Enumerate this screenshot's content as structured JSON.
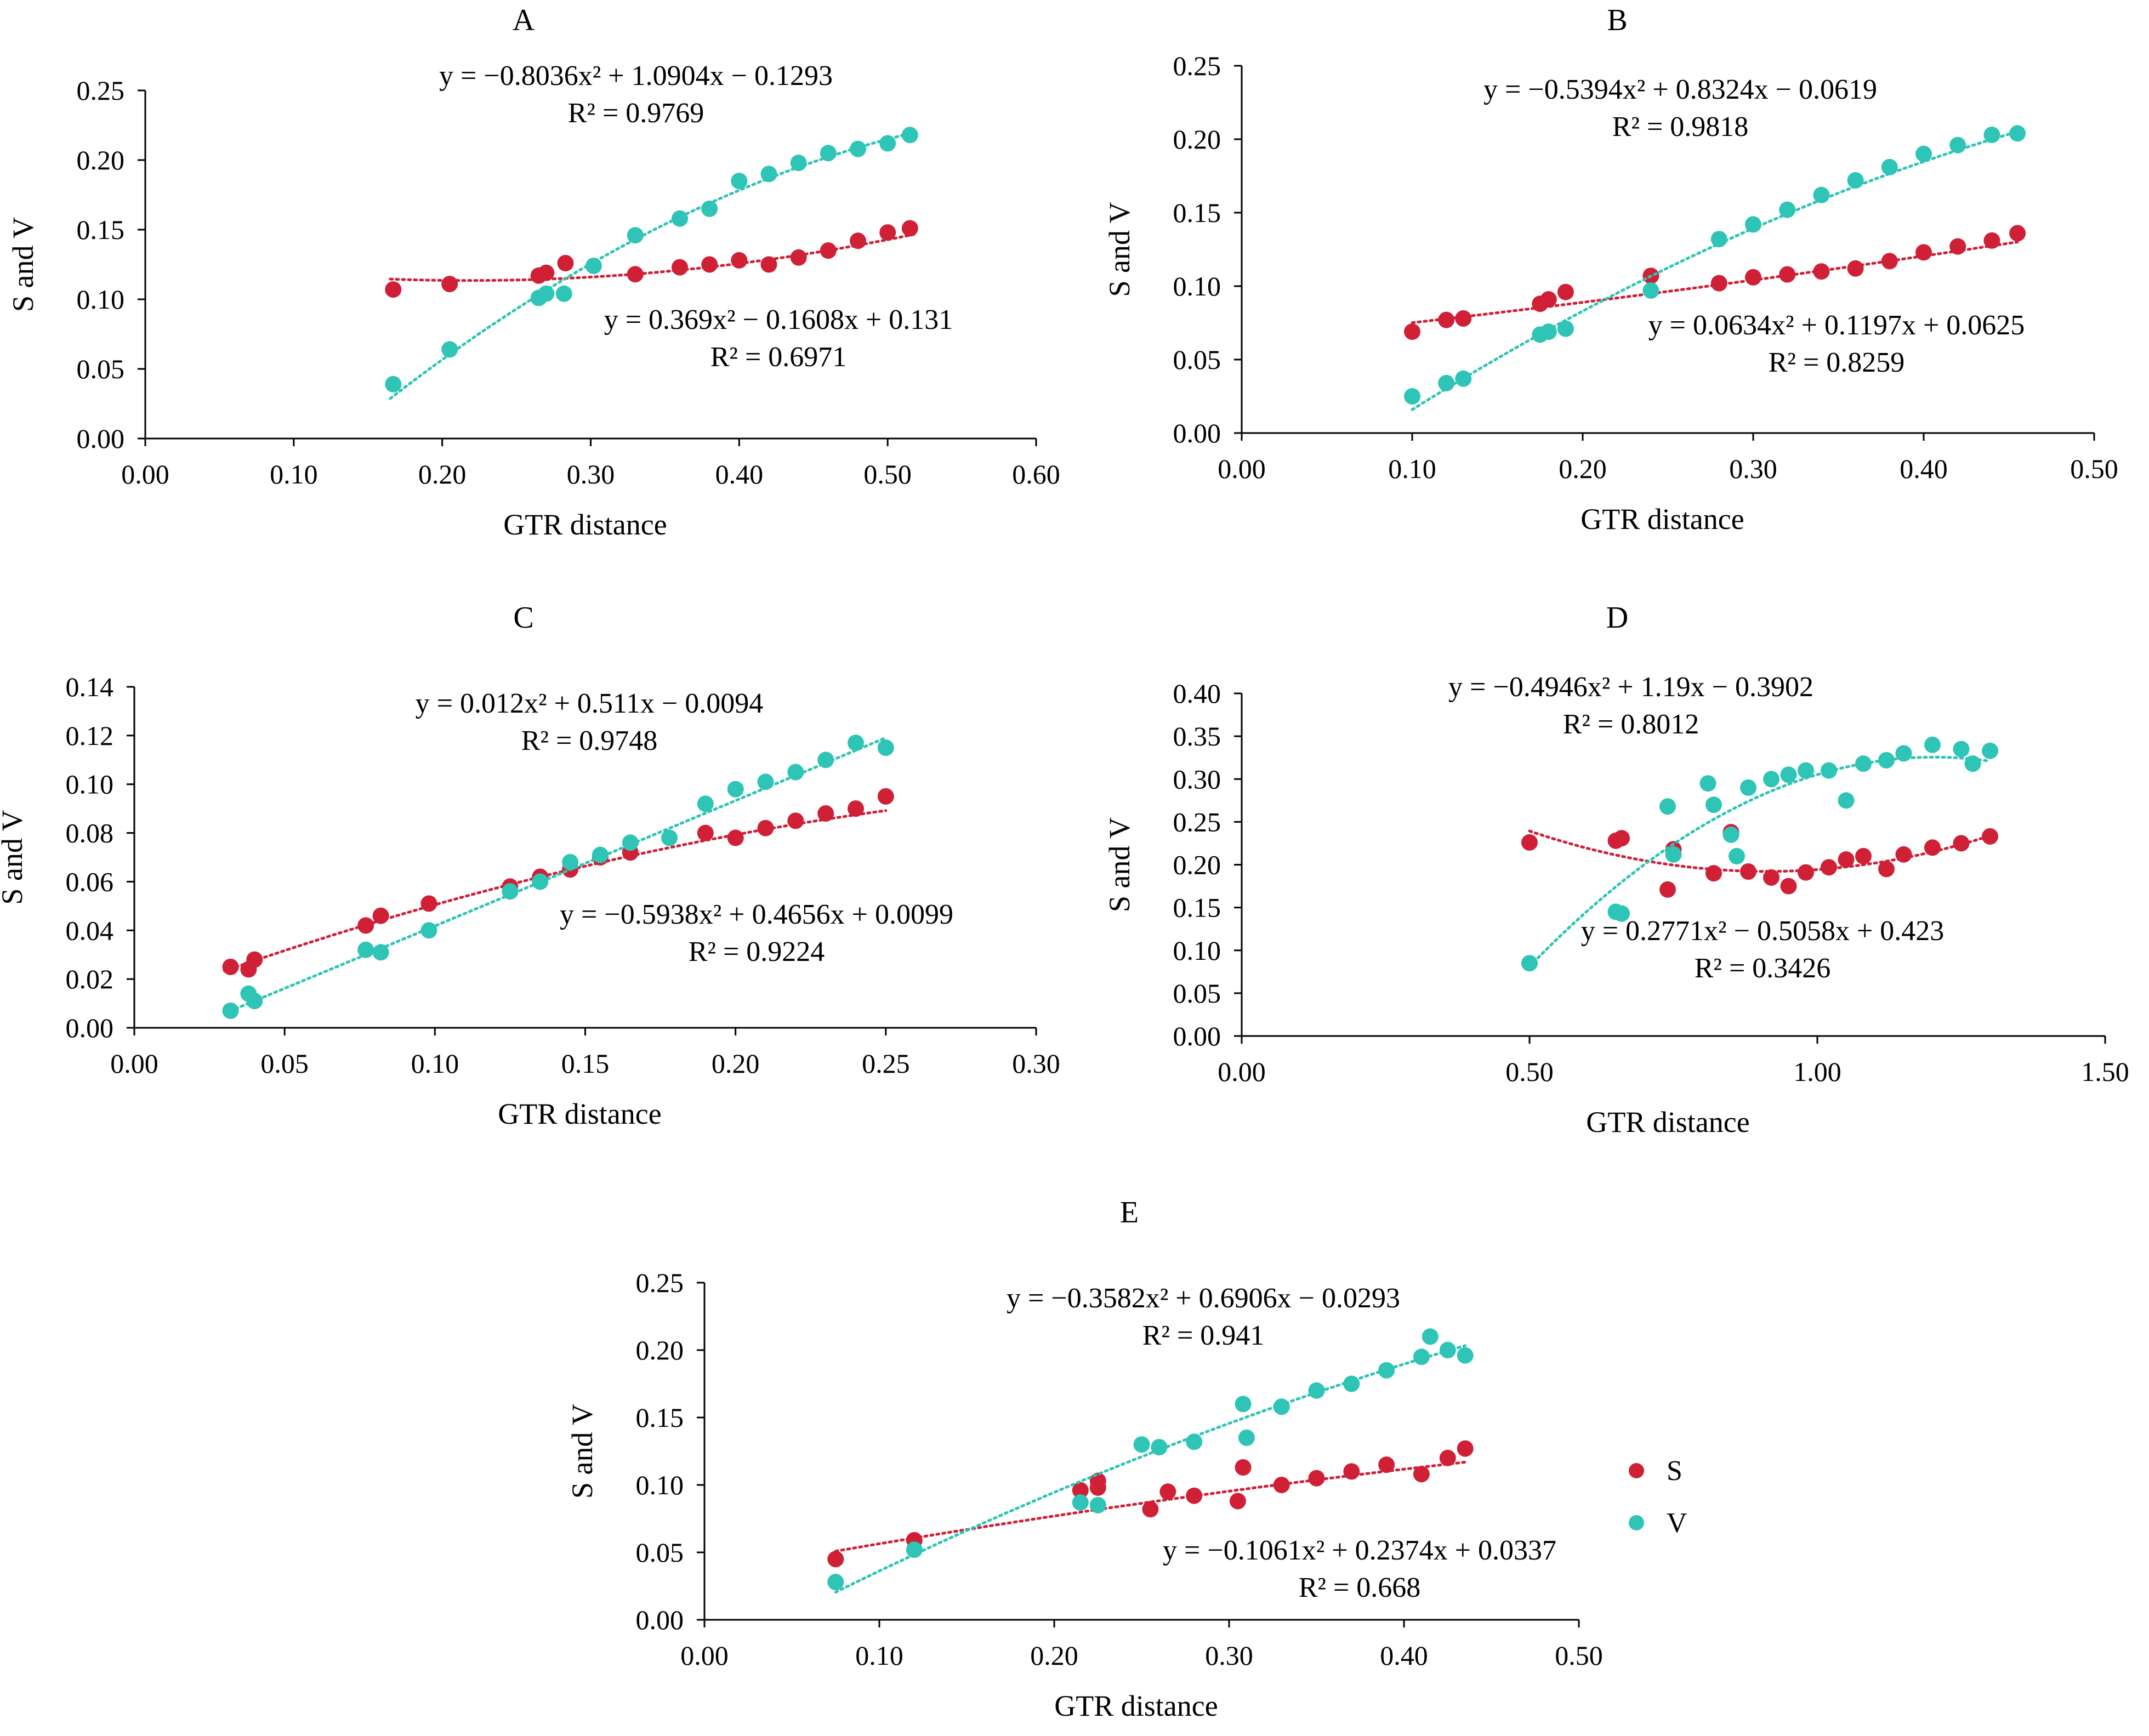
{
  "figure": {
    "legend": {
      "items": [
        {
          "label": "S",
          "color": "#cf2036"
        },
        {
          "label": "V",
          "color": "#2ec4b6"
        }
      ]
    }
  },
  "chart_data": [
    {
      "panel": "A",
      "type": "scatter",
      "xlabel": "GTR distance",
      "ylabel": "S and V",
      "xlim": [
        0,
        0.6
      ],
      "ylim": [
        0,
        0.25
      ],
      "xticks": [
        "0.00",
        "0.10",
        "0.20",
        "0.30",
        "0.40",
        "0.50",
        "0.60"
      ],
      "yticks": [
        "0.00",
        "0.05",
        "0.10",
        "0.15",
        "0.20",
        "0.25"
      ],
      "series": [
        {
          "name": "S",
          "color": "#cf2036",
          "equation": "y = 0.369x² − 0.1608x + 0.131",
          "r2": "R² = 0.6971",
          "fit": [
            0.369,
            -0.1608,
            0.131
          ],
          "fit_range": [
            0.165,
            0.52
          ],
          "points": [
            [
              0.167,
              0.107
            ],
            [
              0.205,
              0.111
            ],
            [
              0.265,
              0.117
            ],
            [
              0.27,
              0.119
            ],
            [
              0.283,
              0.126
            ],
            [
              0.33,
              0.118
            ],
            [
              0.36,
              0.123
            ],
            [
              0.38,
              0.125
            ],
            [
              0.4,
              0.128
            ],
            [
              0.42,
              0.125
            ],
            [
              0.44,
              0.13
            ],
            [
              0.46,
              0.135
            ],
            [
              0.48,
              0.142
            ],
            [
              0.5,
              0.148
            ],
            [
              0.515,
              0.151
            ]
          ]
        },
        {
          "name": "V",
          "color": "#2ec4b6",
          "equation": "y = −0.8036x² + 1.0904x − 0.1293",
          "r2": "R² = 0.9769",
          "fit": [
            -0.8036,
            1.0904,
            -0.1293
          ],
          "fit_range": [
            0.165,
            0.52
          ],
          "points": [
            [
              0.167,
              0.039
            ],
            [
              0.205,
              0.064
            ],
            [
              0.265,
              0.101
            ],
            [
              0.27,
              0.104
            ],
            [
              0.282,
              0.104
            ],
            [
              0.302,
              0.124
            ],
            [
              0.33,
              0.146
            ],
            [
              0.36,
              0.158
            ],
            [
              0.38,
              0.165
            ],
            [
              0.4,
              0.185
            ],
            [
              0.42,
              0.19
            ],
            [
              0.44,
              0.198
            ],
            [
              0.46,
              0.205
            ],
            [
              0.48,
              0.208
            ],
            [
              0.5,
              0.212
            ],
            [
              0.515,
              0.218
            ]
          ]
        }
      ]
    },
    {
      "panel": "B",
      "type": "scatter",
      "xlabel": "GTR distance",
      "ylabel": "S and V",
      "xlim": [
        0,
        0.5
      ],
      "ylim": [
        0,
        0.25
      ],
      "xticks": [
        "0.00",
        "0.10",
        "0.20",
        "0.30",
        "0.40",
        "0.50"
      ],
      "yticks": [
        "0.00",
        "0.05",
        "0.10",
        "0.15",
        "0.20",
        "0.25"
      ],
      "series": [
        {
          "name": "S",
          "color": "#cf2036",
          "equation": "y = 0.0634x² + 0.1197x + 0.0625",
          "r2": "R² = 0.8259",
          "fit": [
            0.0634,
            0.1197,
            0.0625
          ],
          "fit_range": [
            0.1,
            0.455
          ],
          "points": [
            [
              0.1,
              0.069
            ],
            [
              0.12,
              0.077
            ],
            [
              0.13,
              0.078
            ],
            [
              0.175,
              0.088
            ],
            [
              0.18,
              0.091
            ],
            [
              0.19,
              0.096
            ],
            [
              0.24,
              0.107
            ],
            [
              0.28,
              0.102
            ],
            [
              0.3,
              0.106
            ],
            [
              0.32,
              0.108
            ],
            [
              0.34,
              0.11
            ],
            [
              0.36,
              0.112
            ],
            [
              0.38,
              0.117
            ],
            [
              0.4,
              0.123
            ],
            [
              0.42,
              0.127
            ],
            [
              0.44,
              0.131
            ],
            [
              0.455,
              0.136
            ]
          ]
        },
        {
          "name": "V",
          "color": "#2ec4b6",
          "equation": "y = −0.5394x² + 0.8324x − 0.0619",
          "r2": "R² = 0.9818",
          "fit": [
            -0.5394,
            0.8324,
            -0.0619
          ],
          "fit_range": [
            0.1,
            0.455
          ],
          "points": [
            [
              0.1,
              0.025
            ],
            [
              0.12,
              0.034
            ],
            [
              0.13,
              0.037
            ],
            [
              0.175,
              0.067
            ],
            [
              0.18,
              0.069
            ],
            [
              0.19,
              0.071
            ],
            [
              0.24,
              0.097
            ],
            [
              0.28,
              0.132
            ],
            [
              0.3,
              0.142
            ],
            [
              0.32,
              0.152
            ],
            [
              0.34,
              0.162
            ],
            [
              0.36,
              0.172
            ],
            [
              0.38,
              0.181
            ],
            [
              0.4,
              0.19
            ],
            [
              0.42,
              0.196
            ],
            [
              0.44,
              0.203
            ],
            [
              0.455,
              0.204
            ]
          ]
        }
      ]
    },
    {
      "panel": "C",
      "type": "scatter",
      "xlabel": "GTR distance",
      "ylabel": "S and V",
      "xlim": [
        0,
        0.3
      ],
      "ylim": [
        0,
        0.14
      ],
      "xticks": [
        "0.00",
        "0.05",
        "0.10",
        "0.15",
        "0.20",
        "0.25",
        "0.30"
      ],
      "yticks": [
        "0.00",
        "0.02",
        "0.04",
        "0.06",
        "0.08",
        "0.10",
        "0.12",
        "0.14"
      ],
      "series": [
        {
          "name": "S",
          "color": "#cf2036",
          "equation": "y = −0.5938x² + 0.4656x + 0.0099",
          "r2": "R² = 0.9224",
          "fit": [
            -0.5938,
            0.4656,
            0.0099
          ],
          "fit_range": [
            0.03,
            0.25
          ],
          "points": [
            [
              0.032,
              0.025
            ],
            [
              0.038,
              0.024
            ],
            [
              0.04,
              0.028
            ],
            [
              0.077,
              0.042
            ],
            [
              0.082,
              0.046
            ],
            [
              0.098,
              0.051
            ],
            [
              0.125,
              0.058
            ],
            [
              0.135,
              0.062
            ],
            [
              0.145,
              0.065
            ],
            [
              0.155,
              0.07
            ],
            [
              0.165,
              0.072
            ],
            [
              0.19,
              0.08
            ],
            [
              0.2,
              0.078
            ],
            [
              0.21,
              0.082
            ],
            [
              0.22,
              0.085
            ],
            [
              0.23,
              0.088
            ],
            [
              0.24,
              0.09
            ],
            [
              0.25,
              0.095
            ]
          ]
        },
        {
          "name": "V",
          "color": "#2ec4b6",
          "equation": "y = 0.012x² + 0.511x − 0.0094",
          "r2": "R² = 0.9748",
          "fit": [
            0.012,
            0.511,
            -0.0094
          ],
          "fit_range": [
            0.03,
            0.25
          ],
          "points": [
            [
              0.032,
              0.007
            ],
            [
              0.038,
              0.014
            ],
            [
              0.04,
              0.011
            ],
            [
              0.077,
              0.032
            ],
            [
              0.082,
              0.031
            ],
            [
              0.098,
              0.04
            ],
            [
              0.125,
              0.056
            ],
            [
              0.135,
              0.06
            ],
            [
              0.145,
              0.068
            ],
            [
              0.155,
              0.071
            ],
            [
              0.165,
              0.076
            ],
            [
              0.178,
              0.078
            ],
            [
              0.19,
              0.092
            ],
            [
              0.2,
              0.098
            ],
            [
              0.21,
              0.101
            ],
            [
              0.22,
              0.105
            ],
            [
              0.23,
              0.11
            ],
            [
              0.24,
              0.117
            ],
            [
              0.25,
              0.115
            ]
          ]
        }
      ]
    },
    {
      "panel": "D",
      "type": "scatter",
      "xlabel": "GTR distance",
      "ylabel": "S and V",
      "xlim": [
        0,
        1.5
      ],
      "ylim": [
        0,
        0.4
      ],
      "xticks": [
        "0.00",
        "0.50",
        "1.00",
        "1.50"
      ],
      "yticks": [
        "0.00",
        "0.05",
        "0.10",
        "0.15",
        "0.20",
        "0.25",
        "0.30",
        "0.35",
        "0.40"
      ],
      "series": [
        {
          "name": "S",
          "color": "#cf2036",
          "equation": "y = 0.2771x² − 0.5058x + 0.423",
          "r2": "R² = 0.3426",
          "fit": [
            0.2771,
            -0.5058,
            0.423
          ],
          "fit_range": [
            0.5,
            1.3
          ],
          "points": [
            [
              0.5,
              0.226
            ],
            [
              0.65,
              0.228
            ],
            [
              0.66,
              0.231
            ],
            [
              0.74,
              0.171
            ],
            [
              0.75,
              0.218
            ],
            [
              0.85,
              0.238
            ],
            [
              0.82,
              0.19
            ],
            [
              0.88,
              0.192
            ],
            [
              0.92,
              0.185
            ],
            [
              0.95,
              0.175
            ],
            [
              0.98,
              0.191
            ],
            [
              1.02,
              0.197
            ],
            [
              1.05,
              0.206
            ],
            [
              1.08,
              0.21
            ],
            [
              1.12,
              0.195
            ],
            [
              1.15,
              0.212
            ],
            [
              1.2,
              0.22
            ],
            [
              1.25,
              0.225
            ],
            [
              1.3,
              0.233
            ]
          ]
        },
        {
          "name": "V",
          "color": "#2ec4b6",
          "equation": "y = −0.4946x² + 1.19x − 0.3902",
          "r2": "R² = 0.8012",
          "fit": [
            -0.4946,
            1.19,
            -0.3902
          ],
          "fit_range": [
            0.5,
            1.3
          ],
          "points": [
            [
              0.5,
              0.085
            ],
            [
              0.65,
              0.145
            ],
            [
              0.66,
              0.143
            ],
            [
              0.74,
              0.268
            ],
            [
              0.75,
              0.212
            ],
            [
              0.81,
              0.295
            ],
            [
              0.82,
              0.27
            ],
            [
              0.85,
              0.235
            ],
            [
              0.86,
              0.21
            ],
            [
              0.88,
              0.29
            ],
            [
              0.92,
              0.3
            ],
            [
              0.95,
              0.305
            ],
            [
              0.98,
              0.31
            ],
            [
              1.02,
              0.31
            ],
            [
              1.05,
              0.275
            ],
            [
              1.08,
              0.318
            ],
            [
              1.12,
              0.322
            ],
            [
              1.15,
              0.33
            ],
            [
              1.2,
              0.34
            ],
            [
              1.25,
              0.335
            ],
            [
              1.27,
              0.318
            ],
            [
              1.3,
              0.333
            ]
          ]
        }
      ]
    },
    {
      "panel": "E",
      "type": "scatter",
      "xlabel": "GTR distance",
      "ylabel": "S and V",
      "xlim": [
        0,
        0.5
      ],
      "ylim": [
        0,
        0.25
      ],
      "xticks": [
        "0.00",
        "0.10",
        "0.20",
        "0.30",
        "0.40",
        "0.50"
      ],
      "yticks": [
        "0.00",
        "0.05",
        "0.10",
        "0.15",
        "0.20",
        "0.25"
      ],
      "series": [
        {
          "name": "S",
          "color": "#cf2036",
          "equation": "y = −0.1061x² + 0.2374x + 0.0337",
          "r2": "R² = 0.668",
          "fit": [
            -0.1061,
            0.2374,
            0.0337
          ],
          "fit_range": [
            0.075,
            0.435
          ],
          "points": [
            [
              0.075,
              0.045
            ],
            [
              0.12,
              0.059
            ],
            [
              0.215,
              0.096
            ],
            [
              0.225,
              0.103
            ],
            [
              0.225,
              0.098
            ],
            [
              0.255,
              0.082
            ],
            [
              0.265,
              0.095
            ],
            [
              0.28,
              0.092
            ],
            [
              0.305,
              0.088
            ],
            [
              0.308,
              0.113
            ],
            [
              0.33,
              0.1
            ],
            [
              0.35,
              0.105
            ],
            [
              0.37,
              0.11
            ],
            [
              0.39,
              0.115
            ],
            [
              0.41,
              0.108
            ],
            [
              0.425,
              0.12
            ],
            [
              0.435,
              0.127
            ]
          ]
        },
        {
          "name": "V",
          "color": "#2ec4b6",
          "equation": "y = −0.3582x² + 0.6906x − 0.0293",
          "r2": "R² = 0.941",
          "fit": [
            -0.3582,
            0.6906,
            -0.0293
          ],
          "fit_range": [
            0.075,
            0.435
          ],
          "points": [
            [
              0.075,
              0.028
            ],
            [
              0.12,
              0.052
            ],
            [
              0.215,
              0.087
            ],
            [
              0.225,
              0.085
            ],
            [
              0.25,
              0.13
            ],
            [
              0.26,
              0.128
            ],
            [
              0.28,
              0.132
            ],
            [
              0.308,
              0.16
            ],
            [
              0.31,
              0.135
            ],
            [
              0.33,
              0.158
            ],
            [
              0.35,
              0.17
            ],
            [
              0.37,
              0.175
            ],
            [
              0.39,
              0.185
            ],
            [
              0.41,
              0.195
            ],
            [
              0.415,
              0.21
            ],
            [
              0.425,
              0.2
            ],
            [
              0.435,
              0.196
            ]
          ]
        }
      ]
    }
  ]
}
